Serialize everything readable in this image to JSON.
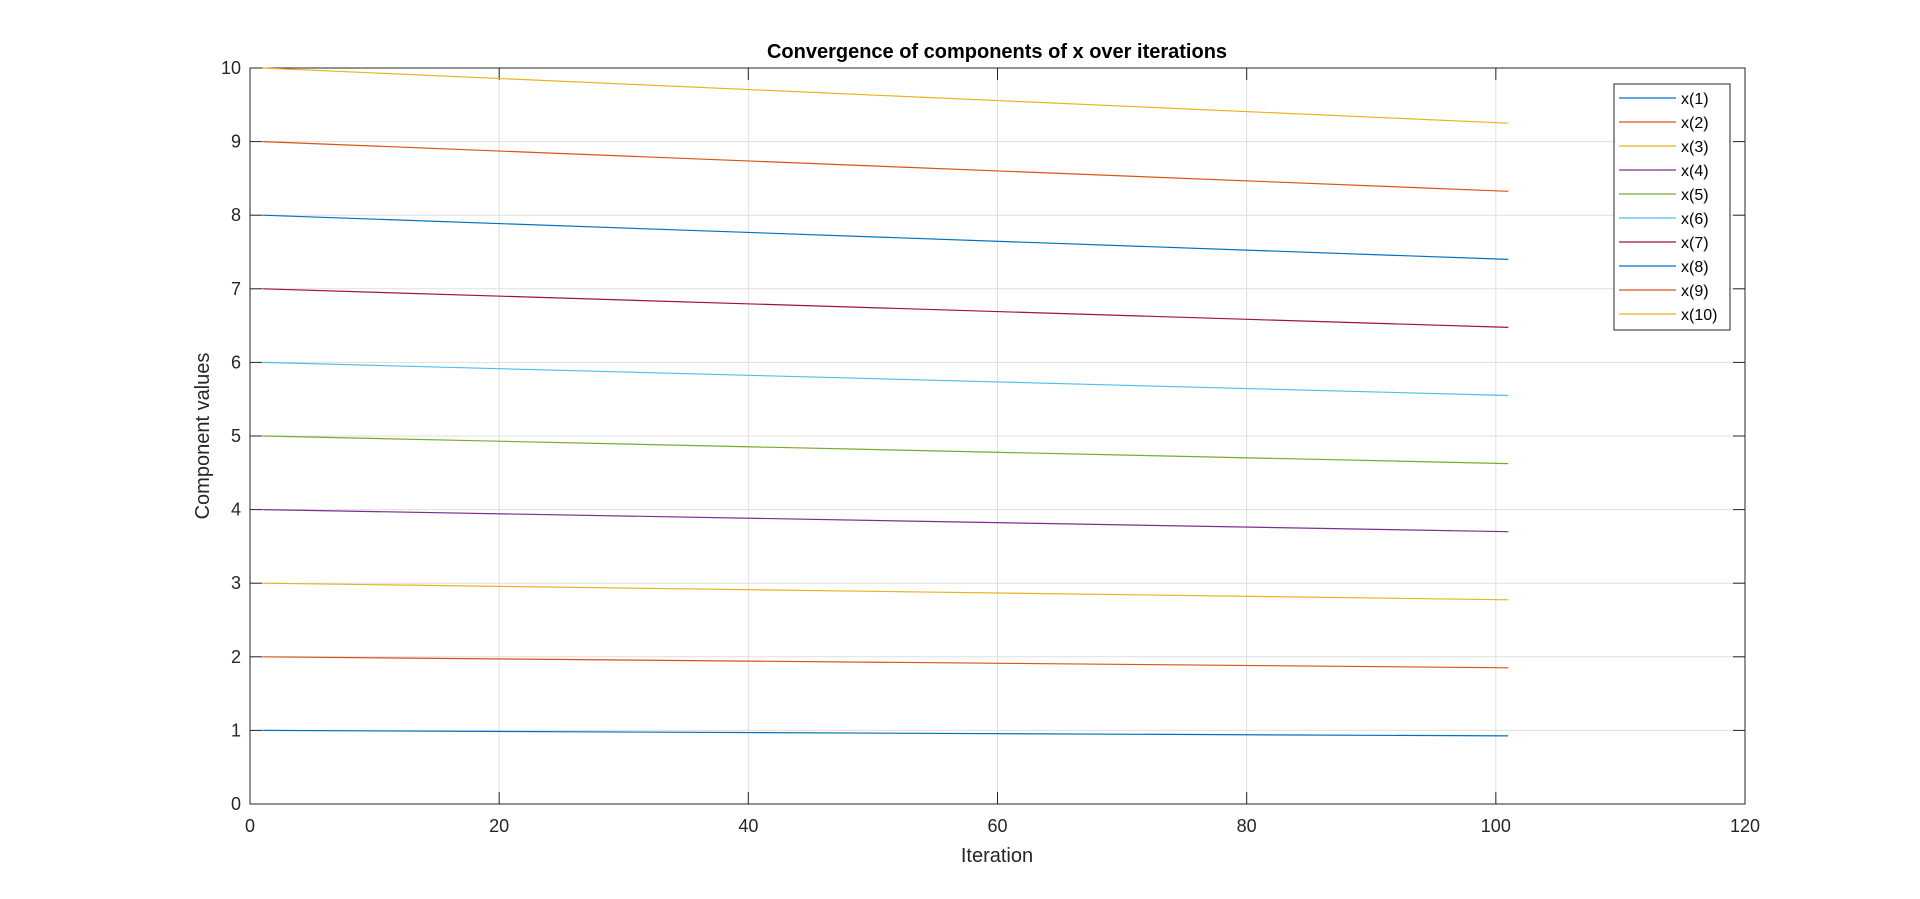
{
  "chart_data": {
    "type": "line",
    "title": "Convergence of components of x over iterations",
    "xlabel": "Iteration",
    "ylabel": "Component values",
    "xlim": [
      0,
      120
    ],
    "ylim": [
      0,
      10
    ],
    "xticks": [
      0,
      20,
      40,
      60,
      80,
      100,
      120
    ],
    "yticks": [
      0,
      1,
      2,
      3,
      4,
      5,
      6,
      7,
      8,
      9,
      10
    ],
    "grid": true,
    "legend_position": "top-right",
    "x": [
      1,
      101
    ],
    "series": [
      {
        "name": "x(1)",
        "color": "#0072BD",
        "values": [
          1.0,
          0.925
        ]
      },
      {
        "name": "x(2)",
        "color": "#D95319",
        "values": [
          2.0,
          1.85
        ]
      },
      {
        "name": "x(3)",
        "color": "#EDB120",
        "values": [
          3.0,
          2.775
        ]
      },
      {
        "name": "x(4)",
        "color": "#7E2F8E",
        "values": [
          4.0,
          3.7
        ]
      },
      {
        "name": "x(5)",
        "color": "#77AC30",
        "values": [
          5.0,
          4.625
        ]
      },
      {
        "name": "x(6)",
        "color": "#4DBEEE",
        "values": [
          6.0,
          5.55
        ]
      },
      {
        "name": "x(7)",
        "color": "#A2142F",
        "values": [
          7.0,
          6.475
        ]
      },
      {
        "name": "x(8)",
        "color": "#0072BD",
        "values": [
          8.0,
          7.4
        ]
      },
      {
        "name": "x(9)",
        "color": "#D95319",
        "values": [
          9.0,
          8.325
        ]
      },
      {
        "name": "x(10)",
        "color": "#EDB120",
        "values": [
          10.0,
          9.25
        ]
      }
    ]
  }
}
